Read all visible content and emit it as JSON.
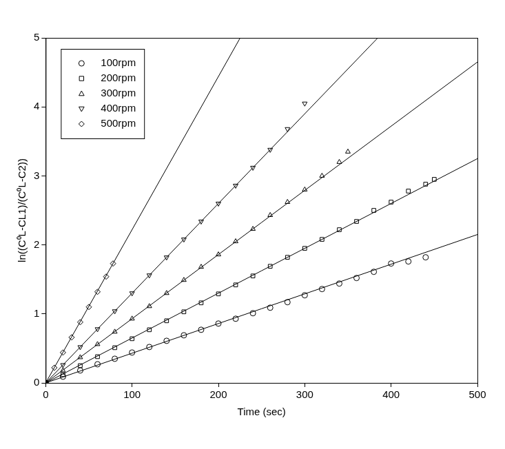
{
  "chart_data": {
    "type": "scatter",
    "x_label": "Time (sec)",
    "y_label": "ln((C⁰L-CL1)/(C⁰L-C2))",
    "xlim": [
      0,
      500
    ],
    "xticks": [
      0,
      100,
      200,
      300,
      400,
      500
    ],
    "ylim": [
      0,
      5
    ],
    "yticks": [
      0,
      1,
      2,
      3,
      4,
      5
    ],
    "grid": false,
    "legend": "upper left",
    "series": [
      {
        "name": "100rpm",
        "marker": "circle",
        "color": "#000000",
        "x": [
          0,
          20,
          40,
          60,
          80,
          100,
          120,
          140,
          160,
          180,
          200,
          220,
          240,
          260,
          280,
          300,
          320,
          340,
          360,
          380,
          400,
          420,
          440
        ],
        "values": [
          0,
          0.09,
          0.18,
          0.27,
          0.35,
          0.44,
          0.52,
          0.61,
          0.69,
          0.77,
          0.86,
          0.93,
          1.01,
          1.09,
          1.17,
          1.27,
          1.36,
          1.44,
          1.52,
          1.61,
          1.73,
          1.76,
          1.82
        ],
        "fit": {
          "x": [
            0,
            500
          ],
          "values": [
            0,
            2.15
          ]
        }
      },
      {
        "name": "200rpm",
        "marker": "square",
        "color": "#000000",
        "x": [
          0,
          20,
          40,
          60,
          80,
          100,
          120,
          140,
          160,
          180,
          200,
          220,
          240,
          260,
          280,
          300,
          320,
          340,
          360,
          380,
          400,
          420,
          440,
          450
        ],
        "values": [
          0,
          0.12,
          0.25,
          0.38,
          0.51,
          0.64,
          0.77,
          0.9,
          1.03,
          1.16,
          1.29,
          1.42,
          1.55,
          1.69,
          1.82,
          1.95,
          2.08,
          2.22,
          2.34,
          2.5,
          2.62,
          2.78,
          2.88,
          2.95
        ],
        "fit": {
          "x": [
            0,
            500
          ],
          "values": [
            0,
            3.25
          ]
        }
      },
      {
        "name": "300rpm",
        "marker": "triangle",
        "color": "#000000",
        "x": [
          0,
          20,
          40,
          60,
          80,
          100,
          120,
          140,
          160,
          180,
          200,
          220,
          240,
          260,
          280,
          300,
          320,
          340,
          350
        ],
        "values": [
          0,
          0.18,
          0.37,
          0.56,
          0.74,
          0.93,
          1.11,
          1.3,
          1.49,
          1.68,
          1.86,
          2.05,
          2.23,
          2.43,
          2.62,
          2.8,
          3.0,
          3.2,
          3.35
        ],
        "fit": {
          "x": [
            0,
            500
          ],
          "values": [
            0,
            4.65
          ]
        }
      },
      {
        "name": "400rpm",
        "marker": "triangle_down",
        "color": "#000000",
        "x": [
          0,
          20,
          40,
          60,
          80,
          100,
          120,
          140,
          160,
          180,
          200,
          220,
          240,
          260,
          280,
          300
        ],
        "values": [
          0,
          0.26,
          0.52,
          0.78,
          1.04,
          1.3,
          1.56,
          1.82,
          2.08,
          2.34,
          2.6,
          2.86,
          3.12,
          3.38,
          3.68,
          4.05
        ],
        "fit": {
          "x": [
            0,
            500
          ],
          "values": [
            0,
            6.5
          ]
        }
      },
      {
        "name": "500rpm",
        "marker": "diamond",
        "color": "#000000",
        "x": [
          0,
          10,
          20,
          30,
          40,
          50,
          60,
          70,
          78
        ],
        "values": [
          0,
          0.22,
          0.44,
          0.66,
          0.88,
          1.1,
          1.32,
          1.54,
          1.73
        ],
        "fit": {
          "x": [
            0,
            500
          ],
          "values": [
            0,
            11.1
          ]
        }
      }
    ]
  }
}
